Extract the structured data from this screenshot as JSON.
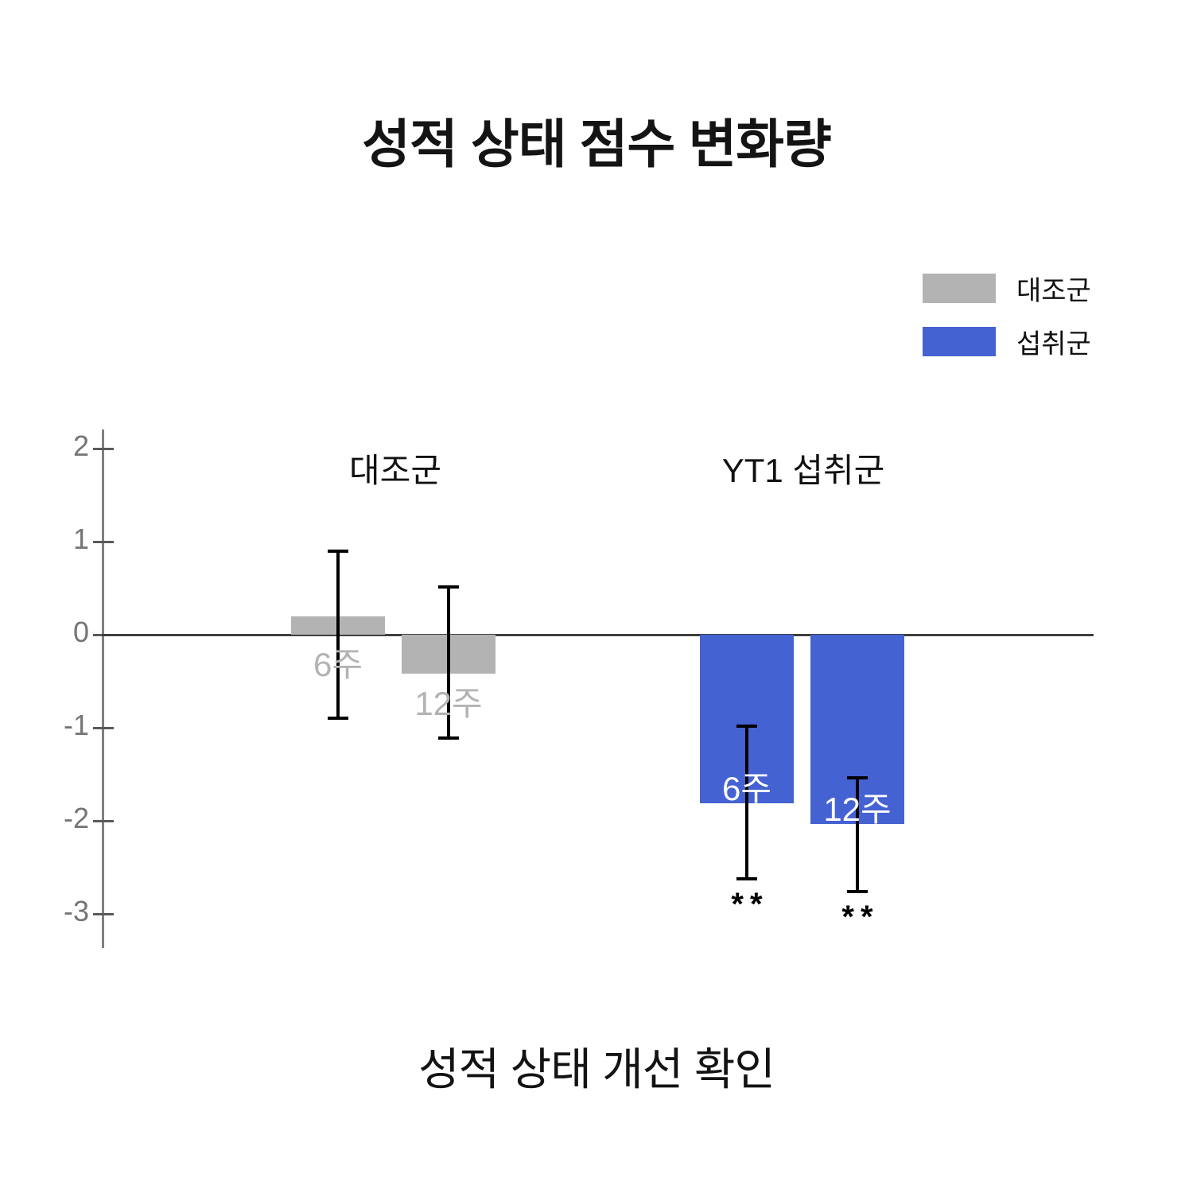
{
  "chart_data": {
    "type": "bar",
    "title": "성적 상태 점수 변화량",
    "caption": "성적 상태 개선 확인",
    "xlabel": "",
    "ylabel": "",
    "ylim": [
      -3.5,
      2.3
    ],
    "yticks": [
      2,
      1,
      0,
      -1,
      -2,
      -3
    ],
    "grid": false,
    "legend_position": "top-right",
    "legend": [
      {
        "label": "대조군",
        "color": "#b3b3b3"
      },
      {
        "label": "섭취군",
        "color": "#4562d2"
      }
    ],
    "groups": [
      {
        "label": "대조군",
        "color": "#b3b3b3",
        "bars": [
          {
            "label": "6주",
            "value": 0.2,
            "err_high": 0.9,
            "err_low": -0.9,
            "significance": "",
            "label_inside": false,
            "label_color": "#b3b3b3"
          },
          {
            "label": "12주",
            "value": -0.42,
            "err_high": 0.51,
            "err_low": -1.11,
            "significance": "",
            "label_inside": false,
            "label_color": "#b3b3b3"
          }
        ]
      },
      {
        "label": "YT1 섭취군",
        "color": "#4562d2",
        "bars": [
          {
            "label": "6주",
            "value": -1.81,
            "err_high": -0.98,
            "err_low": -2.62,
            "significance": "**",
            "label_inside": true,
            "label_color": "#ffffff"
          },
          {
            "label": "12주",
            "value": -2.03,
            "err_high": -1.54,
            "err_low": -2.76,
            "significance": "**",
            "label_inside": true,
            "label_color": "#ffffff"
          }
        ]
      }
    ]
  }
}
